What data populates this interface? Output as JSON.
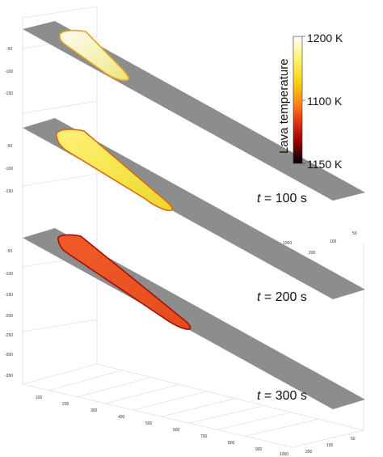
{
  "colorbar": {
    "title": "Lava temperature",
    "top_label": "1200 K",
    "mid_label": "1100 K",
    "bottom_label": "1150 K",
    "colors": [
      "#ffffff",
      "#fff36a",
      "#ffd21a",
      "#ff8a1a",
      "#e03010",
      "#900000",
      "#000000"
    ]
  },
  "panels": [
    {
      "time_label": "",
      "flow_colors": [
        "#fbfbf4",
        "#f6f0b0",
        "#efe27a",
        "#e6a21a"
      ],
      "y_ticks": [
        "-50",
        "-100",
        "-150"
      ]
    },
    {
      "time_label": "t = 100 s",
      "flow_colors": [
        "#fff27a",
        "#f4e446",
        "#efd52a",
        "#d66a10"
      ],
      "y_ticks": [
        "-50",
        "-100",
        "-150"
      ],
      "x_ticks": [
        "1000"
      ],
      "z_ticks": [
        "200",
        "100",
        "50"
      ]
    },
    {
      "time_label": "t = 200 s",
      "flow_colors": [
        "#f05a28",
        "#ea5222",
        "#e24a1c",
        "#a01006"
      ],
      "y_ticks": [
        "-50",
        "-100",
        "-150",
        "-200",
        "-250",
        "-300",
        "-350"
      ]
    },
    {
      "time_label": "t = 300 s",
      "x_ticks": [
        "100",
        "200",
        "300",
        "400",
        "500",
        "600",
        "700",
        "800",
        "900",
        "1000"
      ],
      "z_ticks": [
        "200",
        "100",
        "50"
      ]
    }
  ]
}
